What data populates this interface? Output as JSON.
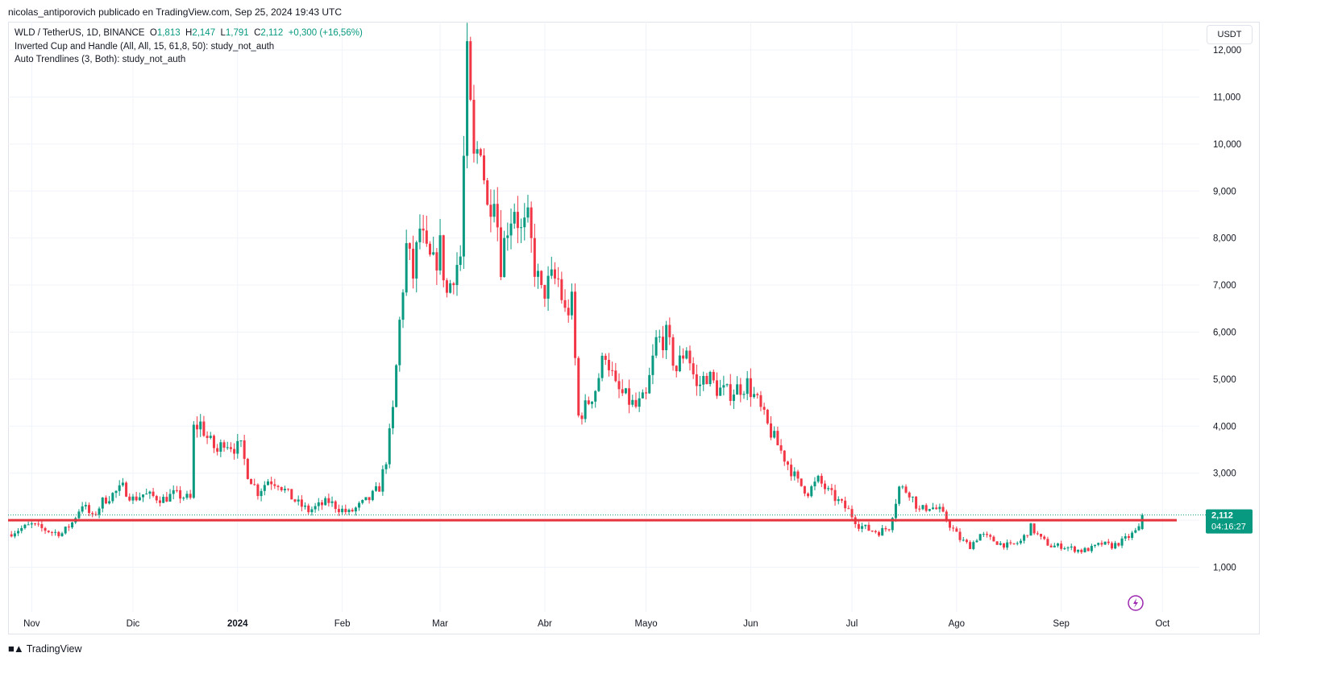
{
  "attribution": "nicolas_antiporovich publicado en TradingView.com, Sep 25, 2024 19:43 UTC",
  "legend": {
    "symbol": "WLD / TetherUS, 1D, BINANCE",
    "o_label": "O",
    "o": "1,813",
    "h_label": "H",
    "h": "2,147",
    "l_label": "L",
    "l": "1,791",
    "c_label": "C",
    "c": "2,112",
    "change": "+0,300 (+16,56%)",
    "study1": "Inverted Cup and Handle (All, All, 15, 61,8, 50): study_not_auth",
    "study2": "Auto Trendlines (3, Both): study_not_auth"
  },
  "unit_button": "USDT",
  "price_label": {
    "value": "2,112",
    "countdown": "04:16:27"
  },
  "footer_logo": "TradingView",
  "colors": {
    "up": "#089981",
    "down": "#f23645",
    "line": "#e5353f",
    "grid": "#f0f3fa"
  },
  "chart_data": {
    "type": "candlestick",
    "y_ticks": [
      "1,000",
      "2,000",
      "3,000",
      "4,000",
      "5,000",
      "6,000",
      "7,000",
      "8,000",
      "9,000",
      "10,000",
      "11,000",
      "12,000"
    ],
    "ylim": [
      0.05,
      12.6
    ],
    "x_ticks": [
      {
        "label": "Nov",
        "date": "2023-11-01"
      },
      {
        "label": "Dic",
        "date": "2023-12-01"
      },
      {
        "label": "2024",
        "date": "2024-01-01",
        "bold": true
      },
      {
        "label": "Feb",
        "date": "2024-02-01"
      },
      {
        "label": "Mar",
        "date": "2024-03-01"
      },
      {
        "label": "Abr",
        "date": "2024-04-01"
      },
      {
        "label": "Mayo",
        "date": "2024-05-01"
      },
      {
        "label": "Jun",
        "date": "2024-06-01"
      },
      {
        "label": "Jul",
        "date": "2024-07-01"
      },
      {
        "label": "Ago",
        "date": "2024-08-01"
      },
      {
        "label": "Sep",
        "date": "2024-09-01"
      },
      {
        "label": "Oct",
        "date": "2024-10-01"
      }
    ],
    "horizontal_line": 2.0,
    "last_close": 2.112,
    "closes": [
      [
        "2023-10-25",
        1.7
      ],
      [
        "2023-10-28",
        1.8
      ],
      [
        "2023-11-01",
        1.9
      ],
      [
        "2023-11-04",
        1.82
      ],
      [
        "2023-11-07",
        1.75
      ],
      [
        "2023-11-10",
        1.72
      ],
      [
        "2023-11-13",
        1.95
      ],
      [
        "2023-11-16",
        2.35
      ],
      [
        "2023-11-19",
        2.05
      ],
      [
        "2023-11-22",
        2.4
      ],
      [
        "2023-11-25",
        2.55
      ],
      [
        "2023-11-28",
        2.7
      ],
      [
        "2023-12-01",
        2.45
      ],
      [
        "2023-12-04",
        2.55
      ],
      [
        "2023-12-07",
        2.5
      ],
      [
        "2023-12-10",
        2.45
      ],
      [
        "2023-12-13",
        2.55
      ],
      [
        "2023-12-16",
        2.5
      ],
      [
        "2023-12-18",
        2.45
      ],
      [
        "2023-12-19",
        3.95
      ],
      [
        "2023-12-21",
        4.05
      ],
      [
        "2023-12-23",
        3.75
      ],
      [
        "2023-12-26",
        3.45
      ],
      [
        "2023-12-28",
        3.7
      ],
      [
        "2023-12-31",
        3.55
      ],
      [
        "2024-01-02",
        3.55
      ],
      [
        "2024-01-04",
        3.0
      ],
      [
        "2024-01-07",
        2.6
      ],
      [
        "2024-01-10",
        2.85
      ],
      [
        "2024-01-13",
        2.8
      ],
      [
        "2024-01-16",
        2.55
      ],
      [
        "2024-01-19",
        2.35
      ],
      [
        "2024-01-22",
        2.2
      ],
      [
        "2024-01-25",
        2.3
      ],
      [
        "2024-01-28",
        2.4
      ],
      [
        "2024-01-31",
        2.25
      ],
      [
        "2024-02-03",
        2.15
      ],
      [
        "2024-02-06",
        2.3
      ],
      [
        "2024-02-09",
        2.45
      ],
      [
        "2024-02-12",
        2.7
      ],
      [
        "2024-02-14",
        3.3
      ],
      [
        "2024-02-16",
        4.3
      ],
      [
        "2024-02-18",
        6.2
      ],
      [
        "2024-02-20",
        7.8
      ],
      [
        "2024-02-22",
        7.2
      ],
      [
        "2024-02-24",
        8.2
      ],
      [
        "2024-02-26",
        7.6
      ],
      [
        "2024-02-28",
        7.4
      ],
      [
        "2024-03-01",
        7.8
      ],
      [
        "2024-03-03",
        6.8
      ],
      [
        "2024-03-05",
        7.3
      ],
      [
        "2024-03-07",
        7.6
      ],
      [
        "2024-03-09",
        11.7
      ],
      [
        "2024-03-11",
        9.6
      ],
      [
        "2024-03-13",
        10.1
      ],
      [
        "2024-03-15",
        8.6
      ],
      [
        "2024-03-17",
        9.1
      ],
      [
        "2024-03-19",
        7.5
      ],
      [
        "2024-03-21",
        8.3
      ],
      [
        "2024-03-23",
        8.7
      ],
      [
        "2024-03-25",
        8.1
      ],
      [
        "2024-03-27",
        8.3
      ],
      [
        "2024-03-29",
        7.4
      ],
      [
        "2024-03-31",
        6.8
      ],
      [
        "2024-04-03",
        7.1
      ],
      [
        "2024-04-05",
        7.1
      ],
      [
        "2024-04-07",
        6.4
      ],
      [
        "2024-04-09",
        6.6
      ],
      [
        "2024-04-11",
        4.2
      ],
      [
        "2024-04-13",
        4.4
      ],
      [
        "2024-04-16",
        4.8
      ],
      [
        "2024-04-19",
        5.6
      ],
      [
        "2024-04-22",
        4.8
      ],
      [
        "2024-04-25",
        4.6
      ],
      [
        "2024-04-28",
        4.4
      ],
      [
        "2024-05-01",
        4.6
      ],
      [
        "2024-05-04",
        5.8
      ],
      [
        "2024-05-07",
        5.9
      ],
      [
        "2024-05-10",
        5.2
      ],
      [
        "2024-05-13",
        5.7
      ],
      [
        "2024-05-16",
        4.8
      ],
      [
        "2024-05-19",
        5.1
      ],
      [
        "2024-05-22",
        4.8
      ],
      [
        "2024-05-25",
        4.7
      ],
      [
        "2024-05-28",
        4.8
      ],
      [
        "2024-05-31",
        4.9
      ],
      [
        "2024-06-03",
        4.5
      ],
      [
        "2024-06-06",
        4.0
      ],
      [
        "2024-06-09",
        3.6
      ],
      [
        "2024-06-12",
        3.2
      ],
      [
        "2024-06-15",
        2.8
      ],
      [
        "2024-06-18",
        2.6
      ],
      [
        "2024-06-21",
        2.85
      ],
      [
        "2024-06-24",
        2.6
      ],
      [
        "2024-06-27",
        2.4
      ],
      [
        "2024-06-30",
        2.2
      ],
      [
        "2024-07-03",
        1.9
      ],
      [
        "2024-07-06",
        1.8
      ],
      [
        "2024-07-09",
        1.75
      ],
      [
        "2024-07-12",
        1.85
      ],
      [
        "2024-07-15",
        2.7
      ],
      [
        "2024-07-18",
        2.6
      ],
      [
        "2024-07-21",
        2.2
      ],
      [
        "2024-07-24",
        2.3
      ],
      [
        "2024-07-27",
        2.2
      ],
      [
        "2024-07-30",
        1.9
      ],
      [
        "2024-08-02",
        1.6
      ],
      [
        "2024-08-05",
        1.45
      ],
      [
        "2024-08-08",
        1.7
      ],
      [
        "2024-08-11",
        1.6
      ],
      [
        "2024-08-14",
        1.5
      ],
      [
        "2024-08-17",
        1.45
      ],
      [
        "2024-08-20",
        1.55
      ],
      [
        "2024-08-23",
        1.85
      ],
      [
        "2024-08-26",
        1.6
      ],
      [
        "2024-08-29",
        1.45
      ],
      [
        "2024-09-01",
        1.45
      ],
      [
        "2024-09-04",
        1.4
      ],
      [
        "2024-09-07",
        1.35
      ],
      [
        "2024-09-10",
        1.4
      ],
      [
        "2024-09-13",
        1.5
      ],
      [
        "2024-09-16",
        1.45
      ],
      [
        "2024-09-19",
        1.55
      ],
      [
        "2024-09-22",
        1.7
      ],
      [
        "2024-09-24",
        1.81
      ],
      [
        "2024-09-25",
        2.112
      ]
    ]
  }
}
